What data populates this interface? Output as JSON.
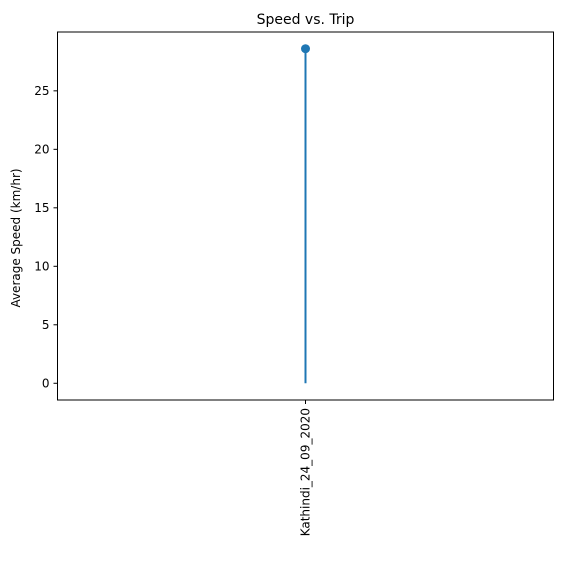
{
  "chart_data": {
    "type": "stem",
    "title": "Speed vs. Trip",
    "xlabel": "",
    "ylabel": "Average Speed (km/hr)",
    "categories": [
      "Kathindi_24_09_2020"
    ],
    "values": [
      28.6
    ],
    "ylim": [
      -1.43,
      30.03
    ],
    "yticks": [
      0,
      5,
      10,
      15,
      20,
      25
    ],
    "grid": false,
    "legend": "none",
    "colors": {
      "series": "#1f77b4",
      "axis": "#000000",
      "background": "#ffffff"
    }
  }
}
